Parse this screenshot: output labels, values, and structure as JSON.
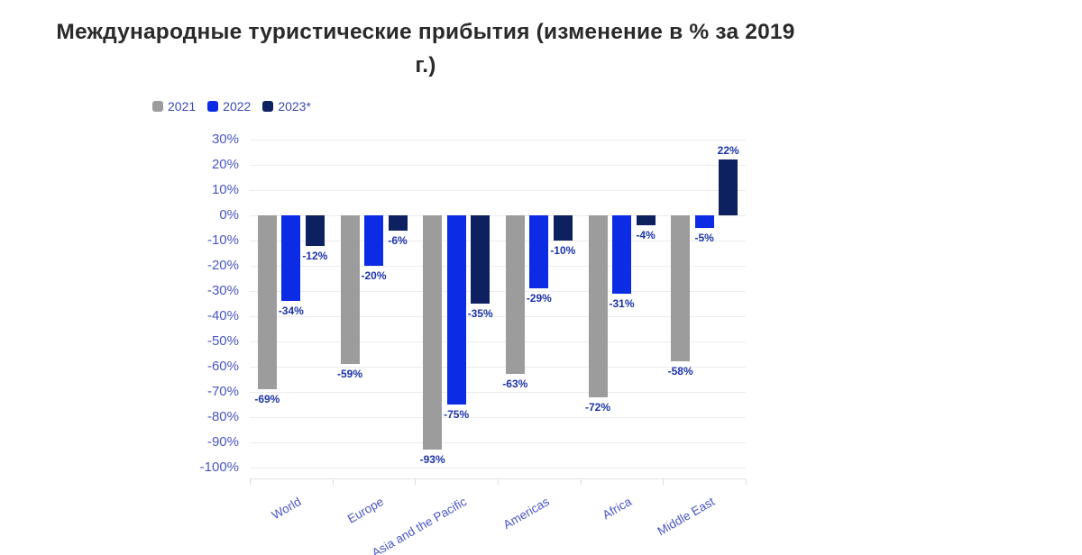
{
  "title": "Международные туристические прибытия (изменение в % за 2019 г.)",
  "colors": {
    "title_text": "#2a2a2a",
    "axis_label": "#4a56c4",
    "data_label": "#1c33aa",
    "gridline": "#ececec",
    "series_2021": "#9c9c9c",
    "series_2022": "#0b2be5",
    "series_2023": "#0d2060",
    "background": "#ffffff"
  },
  "legend": {
    "items": [
      {
        "label": "2021",
        "color": "#9c9c9c"
      },
      {
        "label": "2022",
        "color": "#0b2be5"
      },
      {
        "label": "2023*",
        "color": "#0d2060"
      }
    ]
  },
  "chart_data": {
    "type": "bar",
    "title": "Международные туристические прибытия (изменение в % за 2019 г.)",
    "categories": [
      "World",
      "Europe",
      "Asia and the Pacific",
      "Americas",
      "Africa",
      "Middle East"
    ],
    "series": [
      {
        "name": "2021",
        "color": "#9c9c9c",
        "values": [
          -69,
          -59,
          -93,
          -63,
          -72,
          -58
        ]
      },
      {
        "name": "2022",
        "color": "#0b2be5",
        "values": [
          -34,
          -20,
          -75,
          -29,
          -31,
          -5
        ]
      },
      {
        "name": "2023*",
        "color": "#0d2060",
        "values": [
          -12,
          -6,
          -35,
          -10,
          -4,
          22
        ]
      }
    ],
    "data_labels": [
      [
        "-69%",
        "-59%",
        "-93%",
        "-63%",
        "-72%",
        "-58%"
      ],
      [
        "-34%",
        "-20%",
        "-75%",
        "-29%",
        "-31%",
        "-5%"
      ],
      [
        "-12%",
        "-6%",
        "-35%",
        "-10%",
        "-4%",
        "22%"
      ]
    ],
    "xlabel": "",
    "ylabel": "",
    "ylim": [
      -100,
      30
    ],
    "ytick_step": 10,
    "ytick_labels": [
      "30%",
      "20%",
      "10%",
      "0%",
      "-10%",
      "-20%",
      "-30%",
      "-40%",
      "-50%",
      "-60%",
      "-70%",
      "-80%",
      "-90%",
      "-100%"
    ],
    "grid": true,
    "legend_position": "top-left"
  }
}
